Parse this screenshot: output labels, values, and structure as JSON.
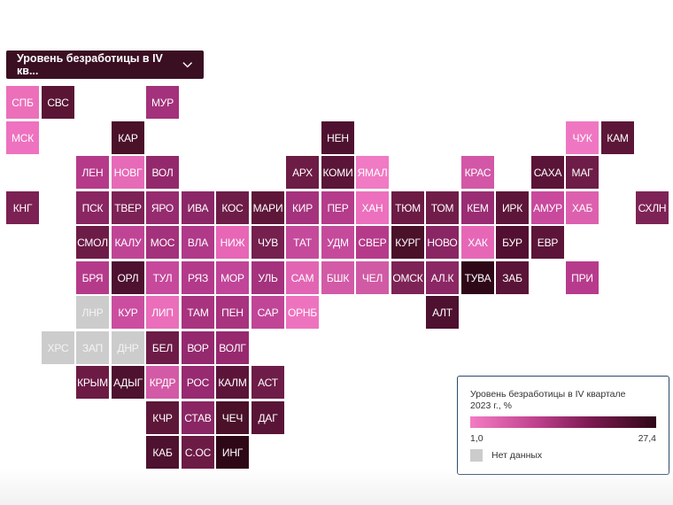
{
  "dropdown": {
    "label": "Уровень безработицы в IV кв..."
  },
  "legend": {
    "title": "Уровень безработицы в IV квартале 2023 г., %",
    "min_label": "1,0",
    "max_label": "27,4",
    "nodata_label": "Нет данных",
    "gradient_colors": [
      "#f37cc4",
      "#c0428e",
      "#7a1a50",
      "#2f0818"
    ],
    "nodata_color": "#cccccc"
  },
  "tiles": [
    {
      "label": "СПБ",
      "col": 0,
      "row": 0,
      "color": "#ec6fba"
    },
    {
      "label": "СВС",
      "col": 1,
      "row": 0,
      "color": "#5a1535"
    },
    {
      "label": "МУР",
      "col": 4,
      "row": 0,
      "color": "#a4317b"
    },
    {
      "label": "МСК",
      "col": 0,
      "row": 1,
      "color": "#ee72bf"
    },
    {
      "label": "КАР",
      "col": 3,
      "row": 1,
      "color": "#4a1129"
    },
    {
      "label": "НЕН",
      "col": 9,
      "row": 1,
      "color": "#4e1230"
    },
    {
      "label": "ЧУК",
      "col": 16,
      "row": 1,
      "color": "#ef77c2"
    },
    {
      "label": "КАМ",
      "col": 17,
      "row": 1,
      "color": "#5c1638"
    },
    {
      "label": "ЛЕН",
      "col": 2,
      "row": 2,
      "color": "#b53a8a"
    },
    {
      "label": "НОВГ",
      "col": 3,
      "row": 2,
      "color": "#e66ab7"
    },
    {
      "label": "ВОЛ",
      "col": 4,
      "row": 2,
      "color": "#93296c"
    },
    {
      "label": "АРХ",
      "col": 8,
      "row": 2,
      "color": "#6c1c45"
    },
    {
      "label": "КОМИ",
      "col": 9,
      "row": 2,
      "color": "#5a1538"
    },
    {
      "label": "ЯМАЛ",
      "col": 10,
      "row": 2,
      "color": "#f07ac3"
    },
    {
      "label": "КРАС",
      "col": 13,
      "row": 2,
      "color": "#d257a6"
    },
    {
      "label": "САХА",
      "col": 15,
      "row": 2,
      "color": "#5a1437"
    },
    {
      "label": "МАГ",
      "col": 16,
      "row": 2,
      "color": "#6d1d47"
    },
    {
      "label": "КНГ",
      "col": 0,
      "row": 3,
      "color": "#7b2153"
    },
    {
      "label": "ПСК",
      "col": 2,
      "row": 3,
      "color": "#8a2662"
    },
    {
      "label": "ТВЕР",
      "col": 3,
      "row": 3,
      "color": "#7d2256"
    },
    {
      "label": "ЯРО",
      "col": 4,
      "row": 3,
      "color": "#962b70"
    },
    {
      "label": "ИВА",
      "col": 5,
      "row": 3,
      "color": "#8b2766"
    },
    {
      "label": "КОС",
      "col": 6,
      "row": 3,
      "color": "#6e1d48"
    },
    {
      "label": "МАРИ",
      "col": 7,
      "row": 3,
      "color": "#5e1739"
    },
    {
      "label": "КИР",
      "col": 8,
      "row": 3,
      "color": "#a5327c"
    },
    {
      "label": "ПЕР",
      "col": 9,
      "row": 3,
      "color": "#b53b8b"
    },
    {
      "label": "ХАН",
      "col": 10,
      "row": 3,
      "color": "#ec70bd"
    },
    {
      "label": "ТЮМ",
      "col": 11,
      "row": 3,
      "color": "#6c1b45"
    },
    {
      "label": "ТОМ",
      "col": 12,
      "row": 3,
      "color": "#701e49"
    },
    {
      "label": "КЕМ",
      "col": 13,
      "row": 3,
      "color": "#9a2c73"
    },
    {
      "label": "ИРК",
      "col": 14,
      "row": 3,
      "color": "#5d1639"
    },
    {
      "label": "АМУР",
      "col": 15,
      "row": 3,
      "color": "#c9499c"
    },
    {
      "label": "ХАБ",
      "col": 16,
      "row": 3,
      "color": "#dd60ae"
    },
    {
      "label": "СХЛН",
      "col": 18,
      "row": 3,
      "color": "#7e2356"
    },
    {
      "label": "СМОЛ",
      "col": 2,
      "row": 4,
      "color": "#6d1c47"
    },
    {
      "label": "КАЛУ",
      "col": 3,
      "row": 4,
      "color": "#c04495"
    },
    {
      "label": "МОС",
      "col": 4,
      "row": 4,
      "color": "#a4317b"
    },
    {
      "label": "ВЛА",
      "col": 5,
      "row": 4,
      "color": "#b03989"
    },
    {
      "label": "НИЖ",
      "col": 6,
      "row": 4,
      "color": "#e766b6"
    },
    {
      "label": "ЧУВ",
      "col": 7,
      "row": 4,
      "color": "#75204f"
    },
    {
      "label": "ТАТ",
      "col": 8,
      "row": 4,
      "color": "#c54a9b"
    },
    {
      "label": "УДМ",
      "col": 9,
      "row": 4,
      "color": "#c54a9b"
    },
    {
      "label": "СВЕР",
      "col": 10,
      "row": 4,
      "color": "#b63a8a"
    },
    {
      "label": "КУРГ",
      "col": 11,
      "row": 4,
      "color": "#4a1129"
    },
    {
      "label": "НОВО",
      "col": 12,
      "row": 4,
      "color": "#8a2663"
    },
    {
      "label": "ХАК",
      "col": 13,
      "row": 4,
      "color": "#e767b7"
    },
    {
      "label": "БУР",
      "col": 14,
      "row": 4,
      "color": "#520f31"
    },
    {
      "label": "ЕВР",
      "col": 15,
      "row": 4,
      "color": "#5c1539"
    },
    {
      "label": "БРЯ",
      "col": 2,
      "row": 5,
      "color": "#b53b8a"
    },
    {
      "label": "ОРЛ",
      "col": 3,
      "row": 5,
      "color": "#4e1130"
    },
    {
      "label": "ТУЛ",
      "col": 4,
      "row": 5,
      "color": "#c6499b"
    },
    {
      "label": "РЯЗ",
      "col": 5,
      "row": 5,
      "color": "#b33a8a"
    },
    {
      "label": "МОР",
      "col": 6,
      "row": 5,
      "color": "#c14598"
    },
    {
      "label": "УЛЬ",
      "col": 7,
      "row": 5,
      "color": "#a5327d"
    },
    {
      "label": "САМ",
      "col": 8,
      "row": 5,
      "color": "#e265b3"
    },
    {
      "label": "БШК",
      "col": 9,
      "row": 5,
      "color": "#d35aa6"
    },
    {
      "label": "ЧЕЛ",
      "col": 10,
      "row": 5,
      "color": "#d15aa5"
    },
    {
      "label": "ОМСК",
      "col": 11,
      "row": 5,
      "color": "#7e2356"
    },
    {
      "label": "АЛ.К",
      "col": 12,
      "row": 5,
      "color": "#8b2764"
    },
    {
      "label": "ТУВА",
      "col": 13,
      "row": 5,
      "color": "#2f0818"
    },
    {
      "label": "ЗАБ",
      "col": 14,
      "row": 5,
      "color": "#5a1437"
    },
    {
      "label": "ПРИ",
      "col": 16,
      "row": 5,
      "color": "#b73b8c"
    },
    {
      "label": "ЛНР",
      "col": 2,
      "row": 6,
      "color": "#cccccc",
      "nodata": true
    },
    {
      "label": "КУР",
      "col": 3,
      "row": 6,
      "color": "#cb4d9f"
    },
    {
      "label": "ЛИП",
      "col": 4,
      "row": 6,
      "color": "#ea6eba"
    },
    {
      "label": "ТАМ",
      "col": 5,
      "row": 6,
      "color": "#a8337f"
    },
    {
      "label": "ПЕН",
      "col": 6,
      "row": 6,
      "color": "#a8337f"
    },
    {
      "label": "САР",
      "col": 7,
      "row": 6,
      "color": "#c04597"
    },
    {
      "label": "ОРНБ",
      "col": 8,
      "row": 6,
      "color": "#ee73bf"
    },
    {
      "label": "АЛТ",
      "col": 12,
      "row": 6,
      "color": "#4e1130"
    },
    {
      "label": "ХРС",
      "col": 1,
      "row": 7,
      "color": "#cccccc",
      "nodata": true
    },
    {
      "label": "ЗАП",
      "col": 2,
      "row": 7,
      "color": "#cccccc",
      "nodata": true
    },
    {
      "label": "ДНР",
      "col": 3,
      "row": 7,
      "color": "#cccccc",
      "nodata": true
    },
    {
      "label": "БЕЛ",
      "col": 4,
      "row": 7,
      "color": "#6d1c47"
    },
    {
      "label": "ВОР",
      "col": 5,
      "row": 7,
      "color": "#94296e"
    },
    {
      "label": "ВОЛГ",
      "col": 6,
      "row": 7,
      "color": "#97296f"
    },
    {
      "label": "КРЫМ",
      "col": 2,
      "row": 8,
      "color": "#6c1b45"
    },
    {
      "label": "АДЫГ",
      "col": 3,
      "row": 8,
      "color": "#4e1130"
    },
    {
      "label": "КРДР",
      "col": 4,
      "row": 8,
      "color": "#d35aa6"
    },
    {
      "label": "РОС",
      "col": 5,
      "row": 8,
      "color": "#972a70"
    },
    {
      "label": "КАЛМ",
      "col": 6,
      "row": 8,
      "color": "#5c1539"
    },
    {
      "label": "АСТ",
      "col": 7,
      "row": 8,
      "color": "#6e1d48"
    },
    {
      "label": "КЧР",
      "col": 4,
      "row": 9,
      "color": "#5e1739"
    },
    {
      "label": "СТАВ",
      "col": 5,
      "row": 9,
      "color": "#8a2663"
    },
    {
      "label": "ЧЕЧ",
      "col": 6,
      "row": 9,
      "color": "#4a1129"
    },
    {
      "label": "ДАГ",
      "col": 7,
      "row": 9,
      "color": "#5a1437"
    },
    {
      "label": "КАБ",
      "col": 4,
      "row": 10,
      "color": "#4e1130"
    },
    {
      "label": "С.ОС",
      "col": 5,
      "row": 10,
      "color": "#6c1b45"
    },
    {
      "label": "ИНГ",
      "col": 6,
      "row": 10,
      "color": "#2f0818"
    }
  ]
}
